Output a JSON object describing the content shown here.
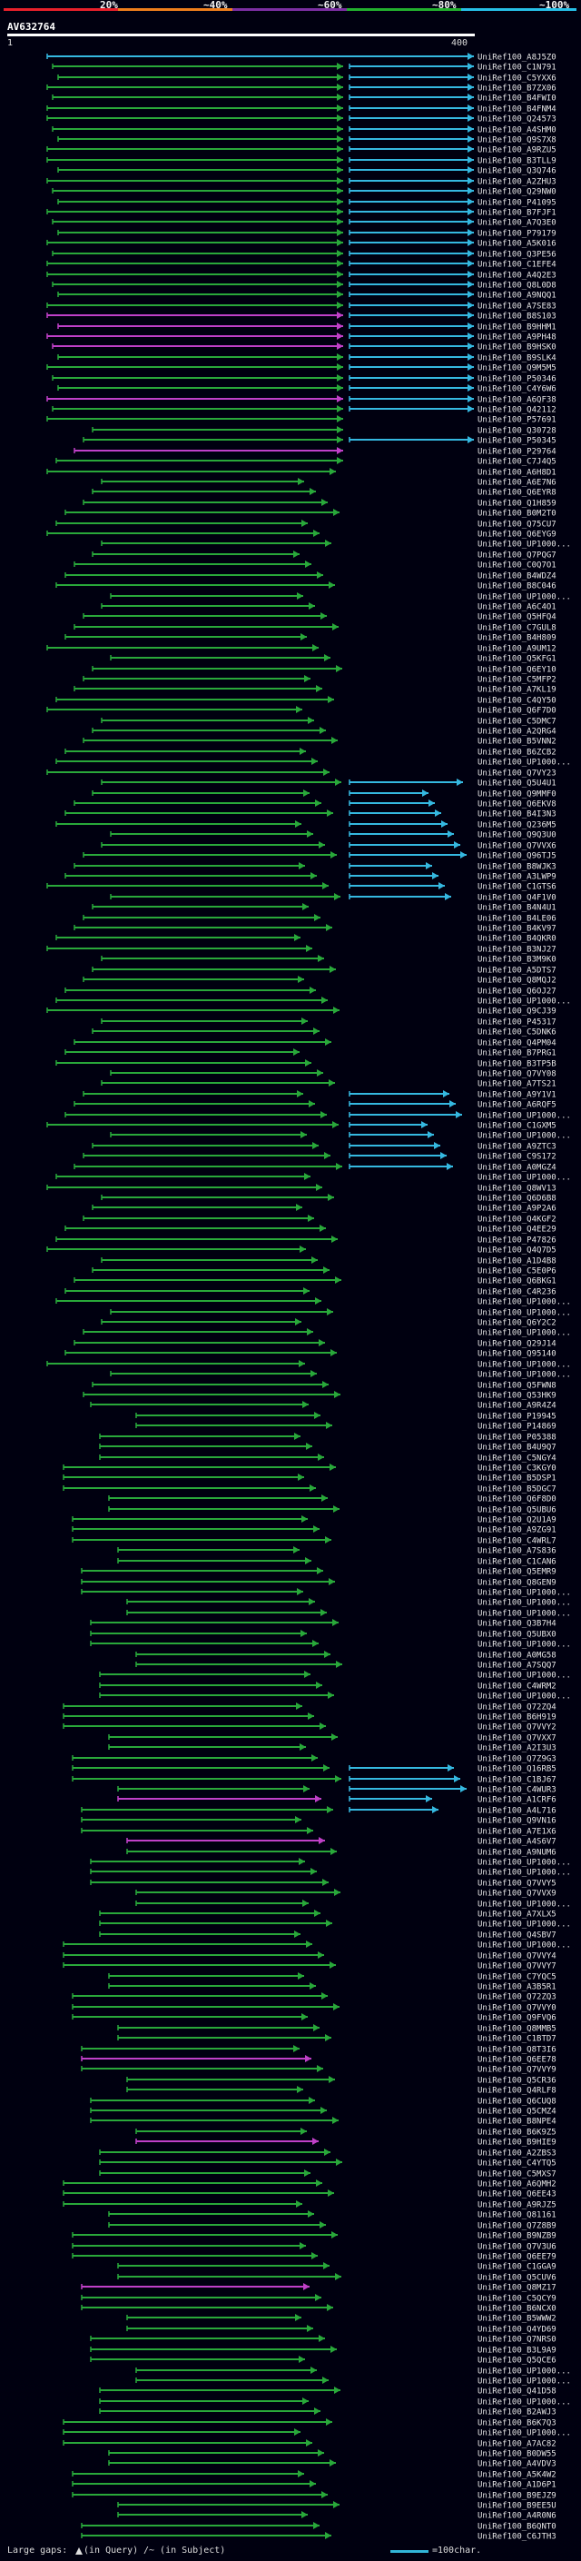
{
  "header": {
    "pct_labels": [
      "20%",
      "~40%",
      "~60%",
      "~80%",
      "~100%"
    ],
    "pct_colors": [
      "#e8202b",
      "#ef7e1c",
      "#7c2fa3",
      "#22b02e",
      "#26c0e8"
    ],
    "query_id": "AV632764",
    "scale_start": "1",
    "scale_end": "400"
  },
  "legend": {
    "gaps_label": "Large gaps: ",
    "gaps_query": "(in Query)",
    "gaps_subject": "/~ (in Subject)",
    "scale_label": "=100char."
  },
  "colors": {
    "cyan": "#35b8e0",
    "green": "#29a83a",
    "purple": "#c040c8",
    "scale_bar": "#32b6d8"
  },
  "hits": [
    "UniRef100_A8J5Z0",
    "UniRef100_C1N791",
    "UniRef100_C5YXX6",
    "UniRef100_B7ZX06",
    "UniRef100_B4FWI0",
    "UniRef100_B4FNM4",
    "UniRef100_Q24573",
    "UniRef100_A4SHM0",
    "UniRef100_Q9S7X8",
    "UniRef100_A9RZU5",
    "UniRef100_B3TLL9",
    "UniRef100_Q3Q746",
    "UniRef100_A2ZHU3",
    "UniRef100_Q29NW0",
    "UniRef100_P41095",
    "UniRef100_B7FJF1",
    "UniRef100_A7Q3E0",
    "UniRef100_P79179",
    "UniRef100_A5K016",
    "UniRef100_Q3PE56",
    "UniRef100_C1EFE4",
    "UniRef100_A4Q2E3",
    "UniRef100_Q8L0D8",
    "UniRef100_A9NQQ1",
    "UniRef100_A7SE83",
    "UniRef100_B8S103",
    "UniRef100_B9HHM1",
    "UniRef100_A9PH48",
    "UniRef100_B9HSK0",
    "UniRef100_B9SLK4",
    "UniRef100_Q9M5M5",
    "UniRef100_P50346",
    "UniRef100_C4Y6W6",
    "UniRef100_A6QF38",
    "UniRef100_Q42112",
    "UniRef100_P57691",
    "UniRef100_Q30728",
    "UniRef100_P50345",
    "UniRef100_P29764",
    "UniRef100_C7J4Q5",
    "UniRef100_A6H8D1",
    "UniRef100_A6E7N6",
    "UniRef100_Q6EYR8",
    "UniRef100_Q1H859",
    "UniRef100_B0M2T0",
    "UniRef100_Q75CU7",
    "UniRef100_Q6EYG9",
    "UniRef100_UP1000...",
    "UniRef100_Q7PQG7",
    "UniRef100_C0Q7O1",
    "UniRef100_B4WDZ4",
    "UniRef100_B8C046",
    "UniRef100_UP1000...",
    "UniRef100_A6C4O1",
    "UniRef100_Q5HFQ4",
    "UniRef100_C7GUL8",
    "UniRef100_B4H809",
    "UniRef100_A9UM12",
    "UniRef100_Q5KFG1",
    "UniRef100_Q6EY10",
    "UniRef100_C5MFP2",
    "UniRef100_A7KL19",
    "UniRef100_C4QY50",
    "UniRef100_Q6F7D0",
    "UniRef100_C5DMC7",
    "UniRef100_A2QRG4",
    "UniRef100_B5VNN2",
    "UniRef100_B6ZCB2",
    "UniRef100_UP1000...",
    "UniRef100_Q7VY23",
    "UniRef100_Q5U4U1",
    "UniRef100_Q9MMF0",
    "UniRef100_Q6EKV8",
    "UniRef100_B4I3N3",
    "UniRef100_Q236M5",
    "UniRef100_Q9Q3U0",
    "UniRef100_Q7VVX6",
    "UniRef100_Q96TJ5",
    "UniRef100_B8WJK3",
    "UniRef100_A3LWP9",
    "UniRef100_C1GTS6",
    "UniRef100_Q4F1V0",
    "UniRef100_B4N4U1",
    "UniRef100_B4LE06",
    "UniRef100_B4KV97",
    "UniRef100_B4QKR0",
    "UniRef100_B3NJ27",
    "UniRef100_B3M9K0",
    "UniRef100_A5DTS7",
    "UniRef100_Q8MQJ2",
    "UniRef100_Q6OJ27",
    "UniRef100_UP1000...",
    "UniRef100_Q9CJ39",
    "UniRef100_P45317",
    "UniRef100_C5DNK6",
    "UniRef100_Q4PM04",
    "UniRef100_B7PRG1",
    "UniRef100_B3TP5B",
    "UniRef100_Q7VY08",
    "UniRef100_A7TS21",
    "UniRef100_A9Y1V1",
    "UniRef100_A6RQF5",
    "UniRef100_UP1000...",
    "UniRef100_C1GXM5",
    "UniRef100_UP1000...",
    "UniRef100_A9ZTC3",
    "UniRef100_C9S172",
    "UniRef100_A0MGZ4",
    "UniRef100_UP1000...",
    "UniRef100_Q8WV13",
    "UniRef100_Q6D6B8",
    "UniRef100_A9P2A6",
    "UniRef100_Q4KGF2",
    "UniRef100_Q4EE29",
    "UniRef100_P47826",
    "UniRef100_Q4Q7D5",
    "UniRef100_A1D4B8",
    "UniRef100_C5E0P6",
    "UniRef100_Q6BKG1",
    "UniRef100_C4R236",
    "UniRef100_UP1000...",
    "UniRef100_UP1000...",
    "UniRef100_Q6Y2C2",
    "UniRef100_UP1000...",
    "UniRef100_Q29J14",
    "UniRef100_Q95140",
    "UniRef100_UP1000...",
    "UniRef100_UP1000...",
    "UniRef100_Q5FWN8",
    "UniRef100_Q53HK9",
    "UniRef100_A9R4Z4",
    "UniRef100_P19945",
    "UniRef100_P14869",
    "UniRef100_P05388",
    "UniRef100_B4U9Q7",
    "UniRef100_C5NGY4",
    "UniRef100_C3KGY0",
    "UniRef100_B5DSP1",
    "UniRef100_B5DGC7",
    "UniRef100_Q6F8D0",
    "UniRef100_Q5UBU6",
    "UniRef100_Q2U1A9",
    "UniRef100_A9ZG91",
    "UniRef100_C4WRL7",
    "UniRef100_A7S836",
    "UniRef100_C1CAN6",
    "UniRef100_Q5EMR9",
    "UniRef100_Q8GEN9",
    "UniRef100_UP1000...",
    "UniRef100_UP1000...",
    "UniRef100_UP1000...",
    "UniRef100_Q3B7H4",
    "UniRef100_Q5UBX0",
    "UniRef100_UP1000...",
    "UniRef100_A0MG58",
    "UniRef100_A7SQQ7",
    "UniRef100_UP1000...",
    "UniRef100_C4WRM2",
    "UniRef100_UP1000...",
    "UniRef100_Q72ZQ4",
    "UniRef100_B6H919",
    "UniRef100_Q7VVY2",
    "UniRef100_Q7VXX7",
    "UniRef100_A2I3U3",
    "UniRef100_Q7Z9G3",
    "UniRef100_Q16RB5",
    "UniRef100_C1BJ67",
    "UniRef100_C4WUR3",
    "UniRef100_A1CRF6",
    "UniRef100_A4L716",
    "UniRef100_Q9VN16",
    "UniRef100_A7E1X6",
    "UniRef100_A4S6V7",
    "UniRef100_A9NUM6",
    "UniRef100_UP1000...",
    "UniRef100_UP1000...",
    "UniRef100_Q7VVY5",
    "UniRef100_Q7VVX9",
    "UniRef100_UP1000...",
    "UniRef100_A7XLX5",
    "UniRef100_UP1000...",
    "UniRef100_Q4SBV7",
    "UniRef100_UP1000...",
    "UniRef100_Q7VVY4",
    "UniRef100_Q7VVY7",
    "UniRef100_C7YQC5",
    "UniRef100_A3B5R1",
    "UniRef100_Q72ZQ3",
    "UniRef100_Q7VVY0",
    "UniRef100_Q9FVQ6",
    "UniRef100_Q8MMB5",
    "UniRef100_C1BTD7",
    "UniRef100_Q8T3I6",
    "UniRef100_Q6EE78",
    "UniRef100_Q7VVY9",
    "UniRef100_Q5CR36",
    "UniRef100_Q4RLF8",
    "UniRef100_Q6CUQ8",
    "UniRef100_Q5CMZ4",
    "UniRef100_B8NPE4",
    "UniRef100_B6K9Z5",
    "UniRef100_B9HIE9",
    "UniRef100_A2ZBS3",
    "UniRef100_C4YTQ5",
    "UniRef100_C5MXS7",
    "UniRef100_A6QMH2",
    "UniRef100_Q6EE43",
    "UniRef100_A9RJZ5",
    "UniRef100_Q81161",
    "UniRef100_Q7Z8B9",
    "UniRef100_B9NZB9",
    "UniRef100_Q7V3U6",
    "UniRef100_Q6EE79",
    "UniRef100_C1GGA9",
    "UniRef100_Q5CUV6",
    "UniRef100_Q8MZ17",
    "UniRef100_C5QCY9",
    "UniRef100_B6NCX0",
    "UniRef100_B5WWW2",
    "UniRef100_Q4YD69",
    "UniRef100_Q7NRS0",
    "UniRef100_B3L9A9",
    "UniRef100_Q5QCE6",
    "UniRef100_UP1000...",
    "UniRef100_UP1000...",
    "UniRef100_Q41D58",
    "UniRef100_UP1000...",
    "UniRef100_B2AWJ3",
    "UniRef100_B6K7Q3",
    "UniRef100_UP1000...",
    "UniRef100_A7AC82",
    "UniRef100_B0DW55",
    "UniRef100_A4VDV3",
    "UniRef100_A5K4W2",
    "UniRef100_A1D6P1",
    "UniRef100_B9EJZ9",
    "UniRef100_B9EE5U",
    "UniRef100_A4R0N6",
    "UniRef100_B6QNT0",
    "UniRef100_C6JTH3"
  ]
}
